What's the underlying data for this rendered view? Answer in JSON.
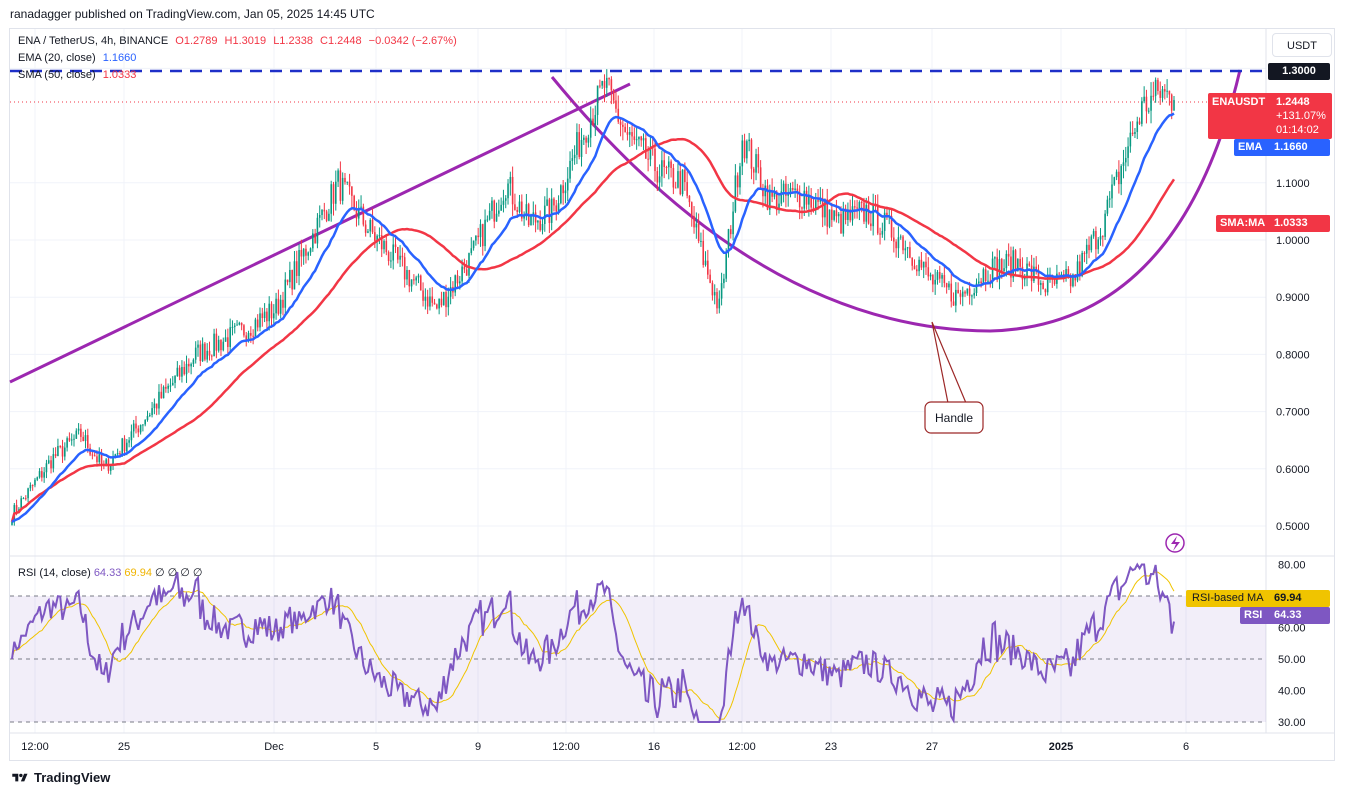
{
  "header": {
    "publisher": "ranadagger published on TradingView.com, Jan 05, 2025 14:45 UTC",
    "symbol": "ENA / TetherUS, 4h, BINANCE",
    "o": "O1.2789",
    "h": "H1.3019",
    "l": "L1.2338",
    "c": "C1.2448",
    "chg": "−0.0342 (−2.67%)",
    "ema_label": "EMA (20, close)",
    "ema_value": "1.1660",
    "sma_label": "SMA (50, close)",
    "sma_value": "1.0333",
    "currency": "USDT"
  },
  "rsi_legend": {
    "label": "RSI (14, close)",
    "rsi": "64.33",
    "ma": "69.94",
    "dots": "∅ ∅ ∅ ∅"
  },
  "tags": {
    "level": "1.3000",
    "ticker": "ENAUSDT",
    "price": "1.2448",
    "pct": "+131.07%",
    "countdown": "01:14:02",
    "ema": "EMA",
    "ema_val": "1.1660",
    "sma": "SMA:MA",
    "sma_val": "1.0333",
    "rsi_ma": "RSI-based MA",
    "rsi_ma_val": "69.94",
    "rsi": "RSI",
    "rsi_val": "64.33"
  },
  "annotation": {
    "handle": "Handle"
  },
  "footer": {
    "brand": "TradingView"
  },
  "colors": {
    "up": "#089981",
    "down": "#f23645",
    "ema": "#2962ff",
    "sma": "#f23645",
    "trend": "#9c27b0",
    "rsi": "#7e57c2",
    "rsi_ma": "#f0c400",
    "level": "#1e2fc8"
  },
  "chart_data": [
    {
      "type": "candlestick",
      "title": "ENA / TetherUS, 4h, BINANCE",
      "x_ticks": [
        "12:00",
        "25",
        "Dec",
        "5",
        "9",
        "12:00",
        "16",
        "12:00",
        "23",
        "27",
        "2025",
        "6"
      ],
      "y_ticks": [
        0.5,
        0.6,
        0.7,
        0.8,
        0.9,
        1.0,
        1.1,
        1.3
      ],
      "ylim": [
        0.47,
        1.35
      ],
      "grid": true,
      "series": [
        {
          "name": "Close",
          "anchors_bar_value": [
            [
              0,
              0.52
            ],
            [
              18,
              0.62
            ],
            [
              30,
              0.66
            ],
            [
              40,
              0.6
            ],
            [
              60,
              0.7
            ],
            [
              80,
              0.8
            ],
            [
              100,
              0.84
            ],
            [
              115,
              0.88
            ],
            [
              130,
              1.0
            ],
            [
              142,
              1.1
            ],
            [
              155,
              1.02
            ],
            [
              170,
              0.95
            ],
            [
              185,
              0.88
            ],
            [
              200,
              0.97
            ],
            [
              215,
              1.1
            ],
            [
              225,
              1.03
            ],
            [
              235,
              1.05
            ],
            [
              250,
              1.2
            ],
            [
              258,
              1.27
            ],
            [
              268,
              1.18
            ],
            [
              282,
              1.12
            ],
            [
              292,
              1.1
            ],
            [
              300,
              0.98
            ],
            [
              308,
              0.88
            ],
            [
              318,
              1.18
            ],
            [
              330,
              1.07
            ],
            [
              345,
              1.08
            ],
            [
              360,
              1.03
            ],
            [
              372,
              1.05
            ],
            [
              388,
              1.0
            ],
            [
              400,
              0.93
            ],
            [
              412,
              0.9
            ],
            [
              425,
              0.95
            ],
            [
              438,
              0.96
            ],
            [
              450,
              0.92
            ],
            [
              462,
              0.93
            ],
            [
              475,
              1.03
            ],
            [
              485,
              1.15
            ],
            [
              492,
              1.23
            ],
            [
              500,
              1.26
            ],
            [
              506,
              1.2448
            ]
          ]
        },
        {
          "name": "EMA (20, close)",
          "value": 1.166
        },
        {
          "name": "SMA (50, close)",
          "value": 1.0333
        }
      ],
      "annotations": [
        "1.3000",
        "Handle"
      ]
    },
    {
      "type": "line",
      "title": "RSI (14, close)",
      "y_ticks": [
        30,
        40,
        50,
        60,
        70,
        80
      ],
      "ylim": [
        28,
        82
      ],
      "levels": [
        30,
        50,
        70
      ],
      "series": [
        {
          "name": "RSI",
          "value": 64.33
        },
        {
          "name": "RSI-based MA",
          "value": 69.94
        }
      ]
    }
  ]
}
